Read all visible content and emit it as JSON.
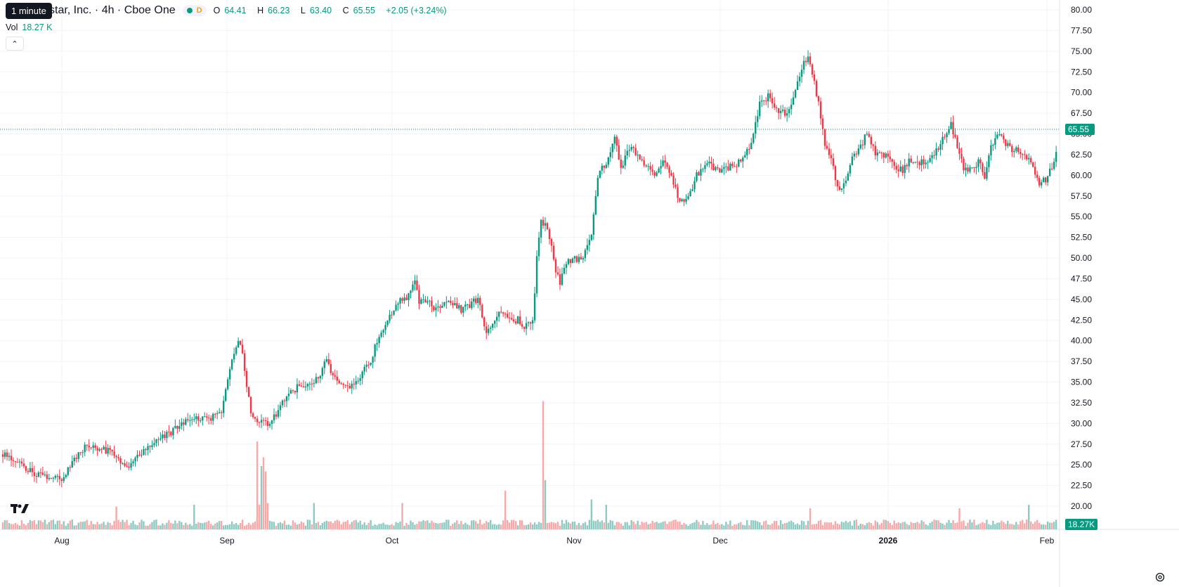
{
  "legend": {
    "symbol_text": "star, Inc. · 4h · Cboe One",
    "open_label": "O",
    "open": "64.41",
    "high_label": "H",
    "high": "66.23",
    "low_label": "L",
    "low": "63.40",
    "close_label": "C",
    "close": "65.55",
    "change": "+2.05 (+3.24%)",
    "market_status": "D"
  },
  "tooltip": "1 minute",
  "volume": {
    "label": "Vol",
    "value": "18.27 K"
  },
  "colors": {
    "up": "#089981",
    "down": "#f23645",
    "up_vol": "#8dcbc2",
    "down_vol": "#f7a9a9",
    "grid": "#f0f3fa",
    "text": "#131722"
  },
  "chart_data": {
    "type": "candlestick",
    "y_ticks": [
      "80.00",
      "77.50",
      "75.00",
      "72.50",
      "70.00",
      "67.50",
      "65.00",
      "62.50",
      "60.00",
      "57.50",
      "55.00",
      "52.50",
      "50.00",
      "47.50",
      "45.00",
      "42.50",
      "40.00",
      "37.50",
      "35.00",
      "32.50",
      "30.00",
      "27.50",
      "25.00",
      "22.50",
      "20.00"
    ],
    "ylim": [
      19,
      80.5
    ],
    "x_ticks": [
      "Aug",
      "Sep",
      "Oct",
      "Nov",
      "Dec",
      "2026",
      "Feb"
    ],
    "last_price": "65.55",
    "last_volume": "18.27K",
    "anchor_closes": [
      [
        0,
        26.2
      ],
      [
        8,
        25.0
      ],
      [
        14,
        24.0
      ],
      [
        20,
        23.6
      ],
      [
        24,
        23.4
      ],
      [
        28,
        23.4
      ],
      [
        33,
        25.2
      ],
      [
        36,
        26.4
      ],
      [
        40,
        27.5
      ],
      [
        44,
        27.2
      ],
      [
        48,
        26.8
      ],
      [
        52,
        26.5
      ],
      [
        56,
        25.0
      ],
      [
        61,
        24.9
      ],
      [
        64,
        26.4
      ],
      [
        70,
        27.0
      ],
      [
        74,
        28.0
      ],
      [
        79,
        28.7
      ],
      [
        85,
        30.0
      ],
      [
        92,
        30.7
      ],
      [
        99,
        30.7
      ],
      [
        104,
        31.0
      ],
      [
        108,
        37.0
      ],
      [
        112,
        40.0
      ],
      [
        114,
        38.5
      ],
      [
        118,
        31.0
      ],
      [
        122,
        30.3
      ],
      [
        126,
        29.7
      ],
      [
        130,
        31.0
      ],
      [
        134,
        33.0
      ],
      [
        140,
        34.4
      ],
      [
        145,
        34.8
      ],
      [
        150,
        35.5
      ],
      [
        154,
        37.6
      ],
      [
        156,
        36.2
      ],
      [
        160,
        35.1
      ],
      [
        164,
        34.4
      ],
      [
        168,
        35.3
      ],
      [
        174,
        37.0
      ],
      [
        178,
        40.0
      ],
      [
        182,
        42.0
      ],
      [
        188,
        44.7
      ],
      [
        192,
        45.3
      ],
      [
        196,
        47.0
      ],
      [
        198,
        44.5
      ],
      [
        202,
        44.7
      ],
      [
        206,
        43.6
      ],
      [
        210,
        44.3
      ],
      [
        214,
        44.6
      ],
      [
        218,
        43.6
      ],
      [
        222,
        44.3
      ],
      [
        226,
        45.1
      ],
      [
        230,
        41.2
      ],
      [
        234,
        42.7
      ],
      [
        238,
        43.7
      ],
      [
        242,
        42.3
      ],
      [
        245,
        42.5
      ],
      [
        248,
        41.5
      ],
      [
        252,
        42.3
      ],
      [
        254,
        50.0
      ],
      [
        256,
        54.6
      ],
      [
        258,
        54.0
      ],
      [
        260,
        52.5
      ],
      [
        263,
        48.5
      ],
      [
        265,
        46.9
      ],
      [
        268,
        49.6
      ],
      [
        272,
        49.8
      ],
      [
        276,
        50.0
      ],
      [
        280,
        53.0
      ],
      [
        283,
        60.0
      ],
      [
        287,
        61.5
      ],
      [
        291,
        64.5
      ],
      [
        294,
        61.0
      ],
      [
        298,
        63.5
      ],
      [
        302,
        62.5
      ],
      [
        305,
        61.5
      ],
      [
        310,
        60.0
      ],
      [
        314,
        62.0
      ],
      [
        318,
        60.0
      ],
      [
        322,
        56.5
      ],
      [
        326,
        57.5
      ],
      [
        330,
        60.0
      ],
      [
        334,
        61.5
      ],
      [
        338,
        61.0
      ],
      [
        342,
        60.5
      ],
      [
        346,
        61.0
      ],
      [
        352,
        62.0
      ],
      [
        356,
        64.0
      ],
      [
        360,
        68.5
      ],
      [
        364,
        69.5
      ],
      [
        368,
        68.0
      ],
      [
        372,
        67.5
      ],
      [
        376,
        69.0
      ],
      [
        380,
        73.0
      ],
      [
        383,
        74.5
      ],
      [
        385,
        72.0
      ],
      [
        388,
        69.0
      ],
      [
        391,
        63.5
      ],
      [
        394,
        62.5
      ],
      [
        397,
        58.5
      ],
      [
        400,
        59.0
      ],
      [
        404,
        62.0
      ],
      [
        408,
        63.5
      ],
      [
        411,
        65.0
      ],
      [
        415,
        62.5
      ],
      [
        420,
        62.5
      ],
      [
        424,
        61.0
      ],
      [
        428,
        60.5
      ],
      [
        432,
        62.0
      ],
      [
        436,
        61.5
      ],
      [
        440,
        62.0
      ],
      [
        444,
        63.0
      ],
      [
        448,
        65.0
      ],
      [
        451,
        66.5
      ],
      [
        454,
        63.0
      ],
      [
        457,
        61.0
      ],
      [
        460,
        60.5
      ],
      [
        464,
        61.5
      ],
      [
        467,
        60.0
      ],
      [
        470,
        63.5
      ],
      [
        474,
        65.0
      ],
      [
        478,
        63.5
      ],
      [
        482,
        63.0
      ],
      [
        486,
        62.5
      ],
      [
        490,
        61.0
      ],
      [
        493,
        59.0
      ],
      [
        496,
        59.5
      ],
      [
        499,
        61.0
      ],
      [
        502,
        64.0
      ],
      [
        506,
        66.0
      ],
      [
        509,
        64.0
      ],
      [
        512,
        61.0
      ],
      [
        514,
        60.5
      ],
      [
        517,
        62.5
      ],
      [
        520,
        65.55
      ]
    ],
    "volume_spikes": [
      [
        54,
        13
      ],
      [
        91,
        14
      ],
      [
        121,
        50
      ],
      [
        122,
        14
      ],
      [
        123,
        36
      ],
      [
        124,
        41
      ],
      [
        125,
        33
      ],
      [
        126,
        15
      ],
      [
        148,
        15
      ],
      [
        190,
        15
      ],
      [
        239,
        22
      ],
      [
        257,
        73
      ],
      [
        258,
        28
      ],
      [
        280,
        17
      ],
      [
        287,
        14
      ],
      [
        384,
        12
      ],
      [
        455,
        12
      ],
      [
        488,
        14
      ]
    ]
  }
}
